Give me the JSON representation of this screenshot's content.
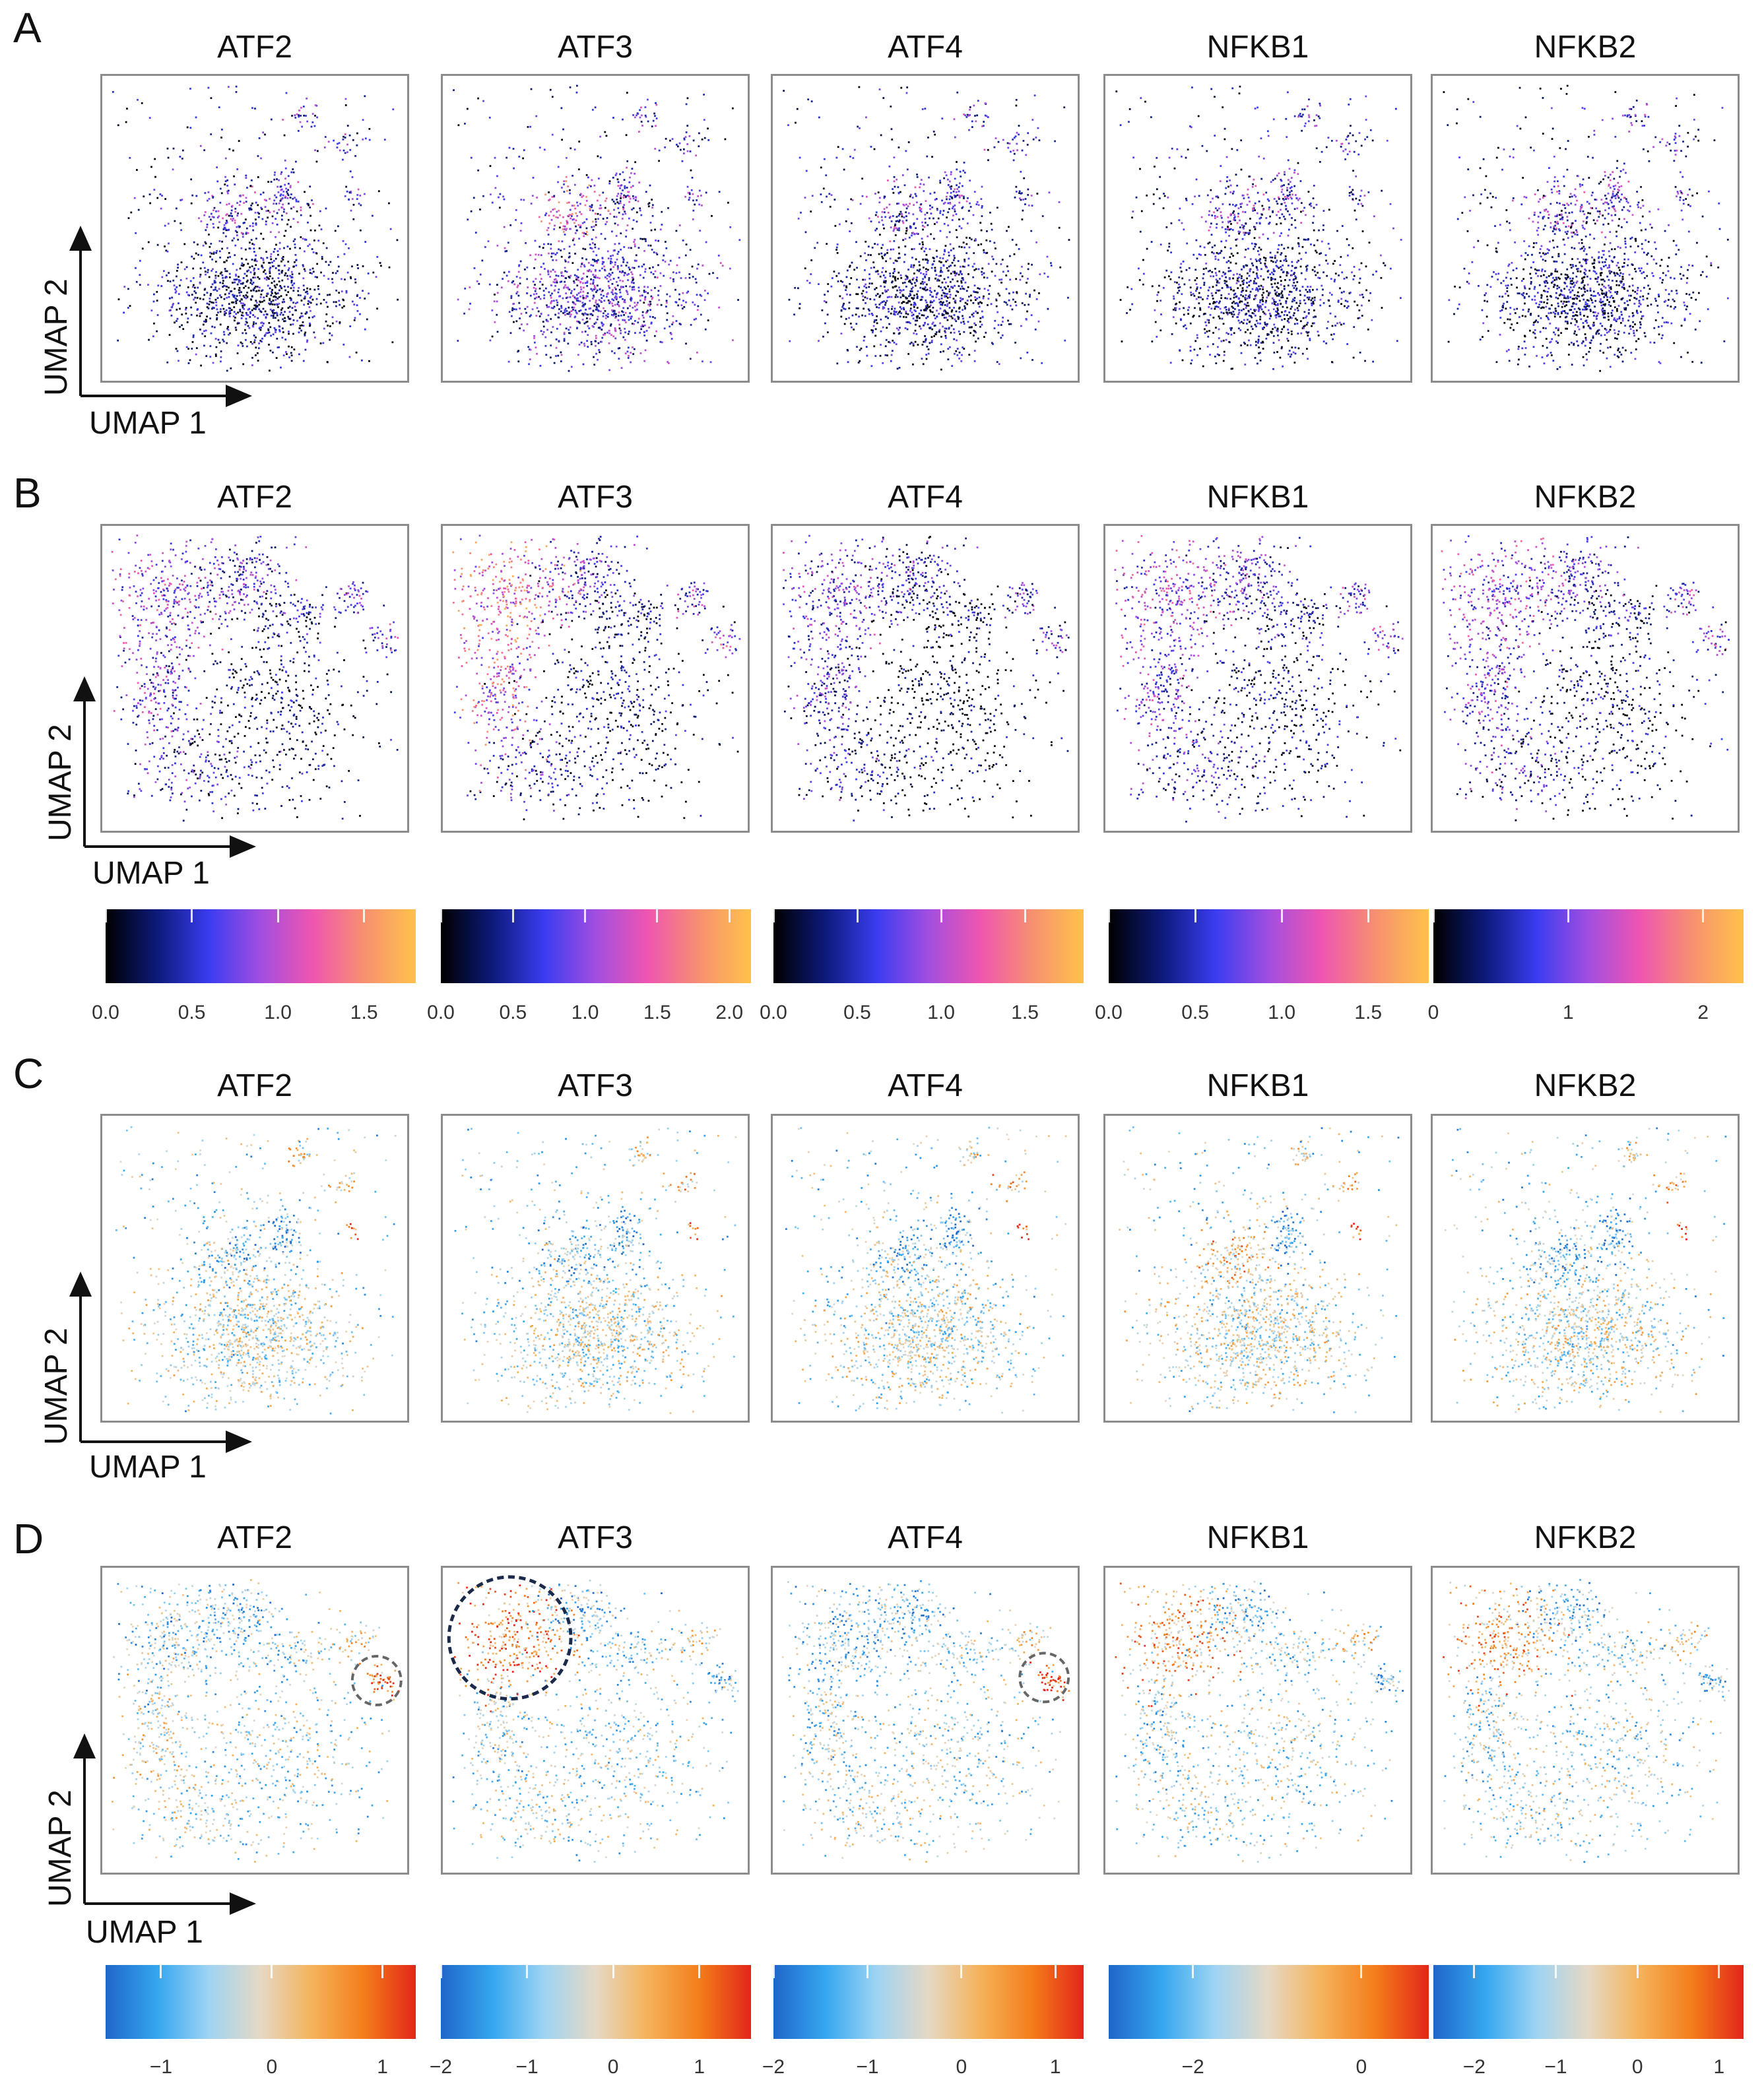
{
  "genes": [
    "ATF2",
    "ATF3",
    "ATF4",
    "NFKB1",
    "NFKB2"
  ],
  "panels": [
    {
      "letter": "A",
      "type": "expression",
      "shape": "central_blob"
    },
    {
      "letter": "B",
      "type": "expression",
      "shape": "arc"
    },
    {
      "letter": "C",
      "type": "diverging",
      "shape": "central_blob"
    },
    {
      "letter": "D",
      "type": "diverging",
      "shape": "arc"
    }
  ],
  "axis_labels": {
    "x": "UMAP 1",
    "y": "UMAP 2"
  },
  "colors": {
    "sequential": [
      "#000000",
      "#0c1a7a",
      "#3a3cf0",
      "#a24ee0",
      "#ef55b0",
      "#f79070",
      "#ffc24a"
    ],
    "diverging": [
      "#1f66c9",
      "#35a6ef",
      "#9fd4f3",
      "#e6d8c4",
      "#f5b25a",
      "#f47d1a",
      "#e3261b"
    ],
    "frame": "#8c8c8c",
    "circle_grey": "#666666",
    "circle_navy": "#1b2a4a"
  },
  "chart_data": [
    {
      "panel": "B",
      "type": "colorbar",
      "scale": "sequential",
      "colorbars": [
        {
          "gene": "ATF2",
          "range": [
            0.0,
            1.8
          ],
          "ticks": [
            "0.0",
            "0.5",
            "1.0",
            "1.5"
          ],
          "tick_values": [
            0.0,
            0.5,
            1.0,
            1.5
          ]
        },
        {
          "gene": "ATF3",
          "range": [
            0.0,
            2.15
          ],
          "ticks": [
            "0.0",
            "0.5",
            "1.0",
            "1.5",
            "2.0"
          ],
          "tick_values": [
            0.0,
            0.5,
            1.0,
            1.5,
            2.0
          ]
        },
        {
          "gene": "ATF4",
          "range": [
            0.0,
            1.85
          ],
          "ticks": [
            "0.0",
            "0.5",
            "1.0",
            "1.5"
          ],
          "tick_values": [
            0.0,
            0.5,
            1.0,
            1.5
          ]
        },
        {
          "gene": "NFKB1",
          "range": [
            0.0,
            1.85
          ],
          "ticks": [
            "0.0",
            "0.5",
            "1.0",
            "1.5"
          ],
          "tick_values": [
            0.0,
            0.5,
            1.0,
            1.5
          ]
        },
        {
          "gene": "NFKB2",
          "range": [
            0.0,
            2.3
          ],
          "ticks": [
            "0",
            "1",
            "2"
          ],
          "tick_values": [
            0,
            1,
            2
          ]
        }
      ]
    },
    {
      "panel": "D",
      "type": "colorbar",
      "scale": "diverging",
      "colorbars": [
        {
          "gene": "ATF2",
          "range": [
            -1.5,
            1.3
          ],
          "ticks": [
            "−1",
            "0",
            "1"
          ],
          "tick_values": [
            -1,
            0,
            1
          ]
        },
        {
          "gene": "ATF3",
          "range": [
            -2.0,
            1.6
          ],
          "ticks": [
            "−2",
            "−1",
            "0",
            "1"
          ],
          "tick_values": [
            -2,
            -1,
            0,
            1
          ]
        },
        {
          "gene": "ATF4",
          "range": [
            -2.0,
            1.3
          ],
          "ticks": [
            "−2",
            "−1",
            "0",
            "1"
          ],
          "tick_values": [
            -2,
            -1,
            0,
            1
          ]
        },
        {
          "gene": "NFKB1",
          "range": [
            -3.0,
            0.8
          ],
          "ticks": [
            "−2",
            "0"
          ],
          "tick_values": [
            -2,
            0
          ]
        },
        {
          "gene": "NFKB2",
          "range": [
            -2.5,
            1.3
          ],
          "ticks": [
            "−2",
            "−1",
            "0",
            "1"
          ],
          "tick_values": [
            -2,
            -1,
            0,
            1
          ]
        }
      ]
    },
    {
      "panel": "A-D",
      "type": "scatter",
      "description_tokens": [
        "UMAP 1",
        "UMAP 2"
      ],
      "annotations": [
        {
          "panel": "D",
          "gene": "ATF2",
          "style": "dashed-circle",
          "color": "grey"
        },
        {
          "panel": "D",
          "gene": "ATF3",
          "style": "dashed-circle",
          "color": "navy"
        },
        {
          "panel": "D",
          "gene": "ATF4",
          "style": "dashed-circle",
          "color": "grey"
        }
      ]
    }
  ]
}
